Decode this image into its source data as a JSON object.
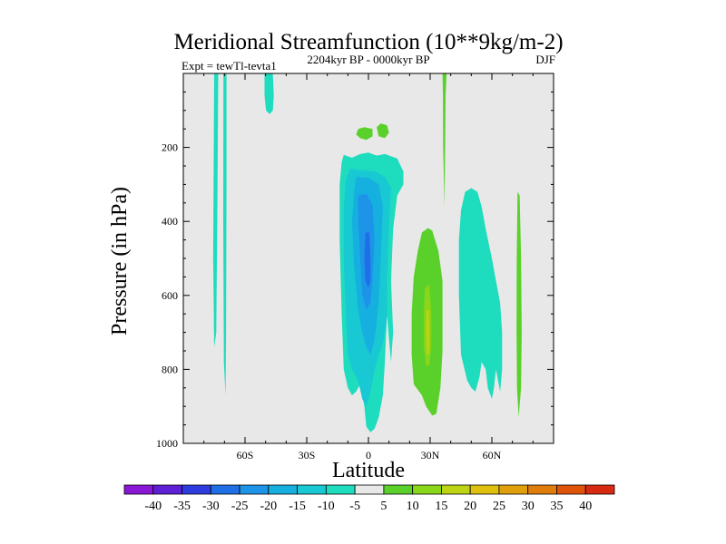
{
  "chart_data": {
    "type": "heatmap",
    "title": "Meridional Streamfunction (10**9kg/m-2)",
    "experiment": "Expt = tewTl-tevta1",
    "period": "2204kyr BP - 0000kyr BP",
    "season": "DJF",
    "xlabel": "Latitude",
    "ylabel": "Pressure (in hPa)",
    "xlim": [
      -90,
      90
    ],
    "ylim": [
      0,
      1000
    ],
    "y_inverted": true,
    "x_ticks": [
      -60,
      -30,
      0,
      30,
      60
    ],
    "x_tick_labels": [
      "60S",
      "30S",
      "0",
      "30N",
      "60N"
    ],
    "y_ticks": [
      200,
      400,
      600,
      800,
      1000
    ],
    "y_tick_labels": [
      "200",
      "400",
      "600",
      "800",
      "1000"
    ],
    "background_color": "#e8e8e8",
    "colorbar": {
      "labels": [
        "-40",
        "-35",
        "-30",
        "-25",
        "-20",
        "-15",
        "-10",
        "-5",
        "5",
        "10",
        "15",
        "20",
        "25",
        "30",
        "35",
        "40"
      ],
      "colors": [
        "#8a16d6",
        "#5f1fd6",
        "#2e3bde",
        "#1f6fe6",
        "#1e94e8",
        "#16b0e0",
        "#18c8d2",
        "#1edcbe",
        "#e8e8e8",
        "#5ad12a",
        "#8ad618",
        "#bcd414",
        "#e0c00e",
        "#e0a00c",
        "#e07c0a",
        "#e0540a",
        "#d82a10"
      ]
    },
    "regions": [
      {
        "name": "streamfunction-cell-sh-polar-a",
        "level": "-10 to -5",
        "color": "#1edcbe",
        "points": [
          [
            -75,
            0
          ],
          [
            -73,
            0
          ],
          [
            -73.5,
            400
          ],
          [
            -74,
            700
          ],
          [
            -75,
            740
          ],
          [
            -75.5,
            500
          ]
        ]
      },
      {
        "name": "streamfunction-cell-sh-polar-b",
        "level": "-10 to -5",
        "color": "#1edcbe",
        "points": [
          [
            -70.5,
            0
          ],
          [
            -69,
            0
          ],
          [
            -69,
            300
          ],
          [
            -69.2,
            700
          ],
          [
            -69.5,
            870
          ],
          [
            -70.3,
            780
          ],
          [
            -70.6,
            400
          ]
        ]
      },
      {
        "name": "streamfunction-cell-sh-upper-small",
        "level": "-10 to -5",
        "color": "#1edcbe",
        "points": [
          [
            -50.5,
            0
          ],
          [
            -46.5,
            0
          ],
          [
            -46,
            60
          ],
          [
            -46.5,
            100
          ],
          [
            -48,
            110
          ],
          [
            -49.8,
            100
          ],
          [
            -50.5,
            60
          ]
        ]
      },
      {
        "name": "streamfunction-cell-tropical-outer",
        "level": "-10 to -5",
        "color": "#1edcbe",
        "points": [
          [
            -12,
            220
          ],
          [
            -8,
            228
          ],
          [
            -4,
            218
          ],
          [
            0,
            214
          ],
          [
            4,
            222
          ],
          [
            8,
            218
          ],
          [
            14,
            230
          ],
          [
            17,
            265
          ],
          [
            17,
            300
          ],
          [
            14,
            330
          ],
          [
            12,
            420
          ],
          [
            11,
            560
          ],
          [
            12,
            700
          ],
          [
            11,
            780
          ],
          [
            10,
            720
          ],
          [
            9,
            650
          ],
          [
            8,
            780
          ],
          [
            7,
            870
          ],
          [
            5,
            930
          ],
          [
            3,
            960
          ],
          [
            1,
            970
          ],
          [
            -1,
            955
          ],
          [
            -2,
            900
          ],
          [
            -4,
            840
          ],
          [
            -6,
            860
          ],
          [
            -8,
            870
          ],
          [
            -10,
            850
          ],
          [
            -12,
            800
          ],
          [
            -13,
            650
          ],
          [
            -14,
            450
          ],
          [
            -14,
            300
          ],
          [
            -13,
            240
          ]
        ]
      },
      {
        "name": "streamfunction-cell-tropical-mid",
        "level": "-15 to -10",
        "color": "#18c8d2",
        "points": [
          [
            -9,
            258
          ],
          [
            -3,
            262
          ],
          [
            3,
            265
          ],
          [
            8,
            280
          ],
          [
            11,
            310
          ],
          [
            10,
            400
          ],
          [
            9,
            550
          ],
          [
            9,
            660
          ],
          [
            7,
            730
          ],
          [
            5,
            760
          ],
          [
            3,
            800
          ],
          [
            1,
            860
          ],
          [
            -1,
            900
          ],
          [
            -3,
            880
          ],
          [
            -5,
            830
          ],
          [
            -8,
            800
          ],
          [
            -10,
            760
          ],
          [
            -11,
            650
          ],
          [
            -12,
            500
          ],
          [
            -12,
            360
          ],
          [
            -11,
            290
          ]
        ]
      },
      {
        "name": "streamfunction-cell-tropical-inner",
        "level": "-20 to -15",
        "color": "#16b0e0",
        "points": [
          [
            -6,
            280
          ],
          [
            0,
            282
          ],
          [
            5,
            300
          ],
          [
            7,
            360
          ],
          [
            6,
            500
          ],
          [
            5,
            620
          ],
          [
            3,
            720
          ],
          [
            1,
            760
          ],
          [
            -1,
            740
          ],
          [
            -3,
            700
          ],
          [
            -5,
            640
          ],
          [
            -7,
            520
          ],
          [
            -8,
            400
          ],
          [
            -7,
            320
          ]
        ]
      },
      {
        "name": "streamfunction-cell-tropical-core-a",
        "level": "-25 to -20",
        "color": "#1e94e8",
        "points": [
          [
            -5,
            330
          ],
          [
            -1,
            325
          ],
          [
            2,
            355
          ],
          [
            3,
            450
          ],
          [
            2,
            560
          ],
          [
            1,
            620
          ],
          [
            -1,
            640
          ],
          [
            -3,
            600
          ],
          [
            -4,
            500
          ],
          [
            -5,
            400
          ]
        ]
      },
      {
        "name": "streamfunction-cell-tropical-core-b",
        "level": "-30 to -25",
        "color": "#1f6fe6",
        "points": [
          [
            -1.5,
            430
          ],
          [
            0.5,
            430
          ],
          [
            1,
            500
          ],
          [
            1,
            560
          ],
          [
            0,
            580
          ],
          [
            -1.5,
            560
          ],
          [
            -2,
            500
          ]
        ]
      },
      {
        "name": "streamfunction-cell-nh-outer",
        "level": "-10 to -5",
        "color": "#1edcbe",
        "points": [
          [
            47,
            320
          ],
          [
            50,
            310
          ],
          [
            53,
            320
          ],
          [
            55,
            360
          ],
          [
            57,
            420
          ],
          [
            60,
            500
          ],
          [
            62,
            560
          ],
          [
            64,
            620
          ],
          [
            65,
            700
          ],
          [
            65,
            800
          ],
          [
            64,
            860
          ],
          [
            62,
            800
          ],
          [
            61,
            850
          ],
          [
            60,
            880
          ],
          [
            58,
            850
          ],
          [
            57,
            800
          ],
          [
            55,
            780
          ],
          [
            54,
            820
          ],
          [
            52,
            860
          ],
          [
            50,
            850
          ],
          [
            48,
            830
          ],
          [
            45,
            760
          ],
          [
            44,
            600
          ],
          [
            44,
            450
          ],
          [
            45,
            370
          ]
        ]
      },
      {
        "name": "streamfunction-cell-upper-equatorial-a",
        "level": "5 to 10",
        "color": "#5ad12a",
        "points": [
          [
            -5,
            150
          ],
          [
            -2,
            145
          ],
          [
            2,
            150
          ],
          [
            2,
            170
          ],
          [
            -1,
            180
          ],
          [
            -4,
            175
          ],
          [
            -6,
            165
          ]
        ]
      },
      {
        "name": "streamfunction-cell-upper-equatorial-b",
        "level": "5 to 10",
        "color": "#5ad12a",
        "points": [
          [
            4,
            145
          ],
          [
            6,
            135
          ],
          [
            9,
            140
          ],
          [
            10,
            160
          ],
          [
            8,
            175
          ],
          [
            5,
            170
          ]
        ]
      },
      {
        "name": "streamfunction-cell-nh-positive",
        "level": "5 to 10",
        "color": "#5ad12a",
        "points": [
          [
            26,
            430
          ],
          [
            29,
            418
          ],
          [
            31,
            425
          ],
          [
            34,
            480
          ],
          [
            36,
            560
          ],
          [
            36,
            650
          ],
          [
            36,
            750
          ],
          [
            35,
            850
          ],
          [
            33,
            920
          ],
          [
            31,
            925
          ],
          [
            28,
            900
          ],
          [
            26,
            870
          ],
          [
            22,
            840
          ],
          [
            21,
            760
          ],
          [
            21,
            650
          ],
          [
            22,
            550
          ],
          [
            24,
            480
          ]
        ]
      },
      {
        "name": "streamfunction-cell-nh-positive-core",
        "level": "10 to 15",
        "color": "#8ad618",
        "points": [
          [
            27.5,
            580
          ],
          [
            29.5,
            570
          ],
          [
            30.5,
            640
          ],
          [
            30.5,
            740
          ],
          [
            29.5,
            790
          ],
          [
            28,
            790
          ],
          [
            27,
            740
          ],
          [
            27,
            640
          ]
        ]
      },
      {
        "name": "streamfunction-cell-nh-positive-peak",
        "level": "15 to 20",
        "color": "#bcd414",
        "points": [
          [
            28.2,
            640
          ],
          [
            29.4,
            640
          ],
          [
            29.6,
            700
          ],
          [
            29.4,
            760
          ],
          [
            28.4,
            760
          ],
          [
            28,
            700
          ]
        ]
      },
      {
        "name": "streamfunction-cell-nh-upper-sliver",
        "level": "5 to 10",
        "color": "#5ad12a",
        "points": [
          [
            36,
            0
          ],
          [
            38,
            0
          ],
          [
            37.5,
            60
          ],
          [
            37.3,
            200
          ],
          [
            37,
            360
          ],
          [
            36.3,
            200
          ],
          [
            36.2,
            60
          ]
        ]
      },
      {
        "name": "streamfunction-cell-nh-polar-sliver",
        "level": "5 to 10",
        "color": "#5ad12a",
        "points": [
          [
            72.5,
            320
          ],
          [
            73.5,
            330
          ],
          [
            74.2,
            500
          ],
          [
            74.5,
            700
          ],
          [
            74.2,
            850
          ],
          [
            73,
            930
          ],
          [
            72.2,
            850
          ],
          [
            72,
            700
          ],
          [
            72.1,
            500
          ]
        ]
      }
    ]
  }
}
